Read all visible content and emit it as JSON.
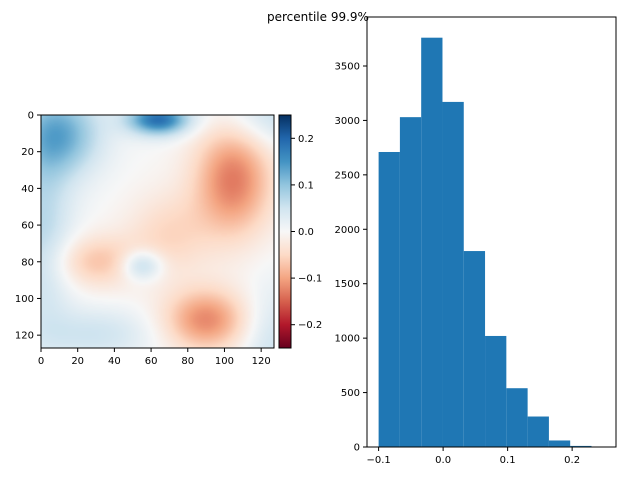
{
  "suptitle": "percentile 99.9%",
  "chart_data": [
    {
      "type": "heatmap",
      "colormap": "RdBu",
      "image_size": [
        128,
        128
      ],
      "x_ticks": [
        0,
        20,
        40,
        60,
        80,
        100,
        120
      ],
      "y_ticks": [
        0,
        20,
        40,
        60,
        80,
        100,
        120
      ],
      "xlim": [
        0,
        127
      ],
      "ylim": [
        127,
        0
      ],
      "colorbar": {
        "vmin": -0.25,
        "vmax": 0.25,
        "ticks": [
          0.2,
          0.1,
          0.0,
          -0.1,
          -0.2
        ],
        "tick_labels": [
          "0.2",
          "0.1",
          "0.0",
          "−0.1",
          "−0.2"
        ]
      },
      "regions": [
        {
          "cx": 64,
          "cy": 2,
          "sx": 12,
          "sy": 6,
          "value": 0.19
        },
        {
          "cx": 10,
          "cy": 10,
          "sx": 16,
          "sy": 16,
          "value": 0.12
        },
        {
          "cx": 0,
          "cy": 64,
          "sx": 12,
          "sy": 40,
          "value": 0.07
        },
        {
          "cx": 127,
          "cy": 0,
          "sx": 20,
          "sy": 12,
          "value": 0.06
        },
        {
          "cx": 127,
          "cy": 127,
          "sx": 12,
          "sy": 24,
          "value": 0.05
        },
        {
          "cx": 30,
          "cy": 120,
          "sx": 22,
          "sy": 10,
          "value": 0.05
        },
        {
          "cx": 105,
          "cy": 35,
          "sx": 15,
          "sy": 22,
          "value": -0.13
        },
        {
          "cx": 90,
          "cy": 112,
          "sx": 16,
          "sy": 12,
          "value": -0.12
        },
        {
          "cx": 30,
          "cy": 80,
          "sx": 18,
          "sy": 10,
          "value": -0.07
        },
        {
          "cx": 70,
          "cy": 65,
          "sx": 16,
          "sy": 16,
          "value": -0.05
        },
        {
          "cx": 55,
          "cy": 82,
          "sx": 8,
          "sy": 6,
          "value": 0.09
        }
      ]
    },
    {
      "type": "bar",
      "bin_edges": [
        -0.1,
        -0.067,
        -0.034,
        -0.001,
        0.032,
        0.065,
        0.098,
        0.131,
        0.164,
        0.197,
        0.23,
        0.25
      ],
      "values": [
        2710,
        3030,
        3760,
        3170,
        1800,
        1020,
        540,
        280,
        60,
        10,
        0
      ],
      "x_ticks": [
        -0.1,
        0.0,
        0.1,
        0.2
      ],
      "x_tick_labels": [
        "−0.1",
        "0.0",
        "0.1",
        "0.2"
      ],
      "y_ticks": [
        0,
        500,
        1000,
        1500,
        2000,
        2500,
        3000,
        3500
      ],
      "xlim": [
        -0.118,
        0.268
      ],
      "ylim": [
        0,
        3950
      ],
      "color": "#1f77b4"
    }
  ]
}
